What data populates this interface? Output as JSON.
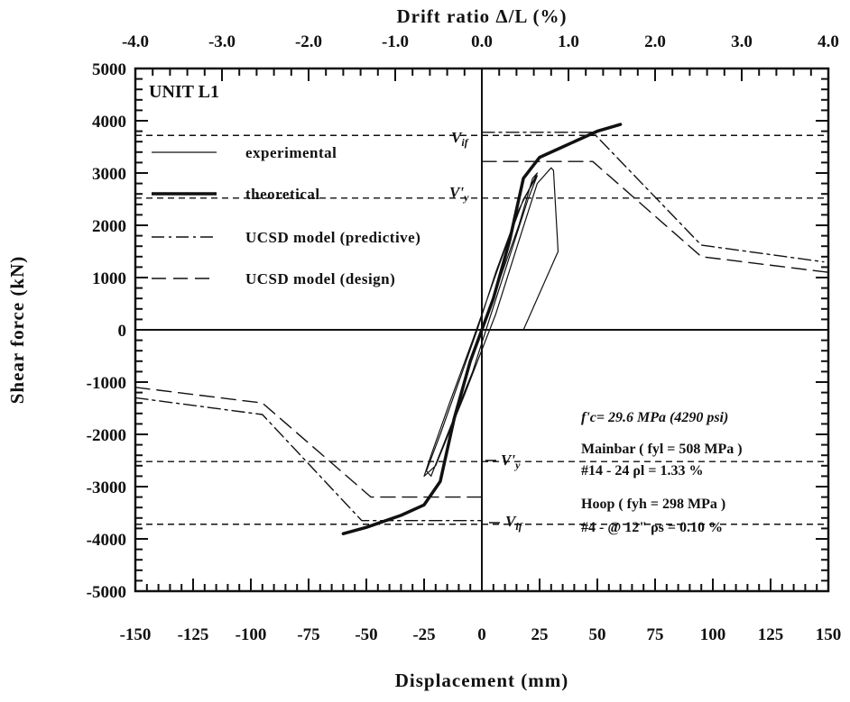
{
  "chart_data": {
    "type": "line",
    "title": "",
    "unit_label": "UNIT L1",
    "xlabel": "Displacement (mm)",
    "ylabel": "Shear force (kN)",
    "x2label": "Drift ratio Δ/L (%)",
    "xlim": [
      -150,
      150
    ],
    "ylim": [
      -5000,
      5000
    ],
    "x2lim": [
      -4.0,
      4.0
    ],
    "x_ticks": [
      "-150",
      "-125",
      "-100",
      "-75",
      "-50",
      "-25",
      "0",
      "25",
      "50",
      "75",
      "100",
      "125",
      "150"
    ],
    "x_tick_values": [
      -150,
      -125,
      -100,
      -75,
      -50,
      -25,
      0,
      25,
      50,
      75,
      100,
      125,
      150
    ],
    "y_ticks": [
      "5000",
      "4000",
      "3000",
      "2000",
      "1000",
      "0",
      "-1000",
      "-2000",
      "-3000",
      "-4000",
      "-5000"
    ],
    "y_tick_values": [
      5000,
      4000,
      3000,
      2000,
      1000,
      0,
      -1000,
      -2000,
      -3000,
      -4000,
      -5000
    ],
    "x2_ticks": [
      "-4.0",
      "-3.0",
      "-2.0",
      "-1.0",
      "0.0",
      "1.0",
      "2.0",
      "3.0",
      "4.0"
    ],
    "x2_tick_values": [
      -4.0,
      -3.0,
      -2.0,
      -1.0,
      0.0,
      1.0,
      2.0,
      3.0,
      4.0
    ],
    "grid": false,
    "legend_position": "top-left",
    "legend": [
      {
        "label": "experimental",
        "style": "thin-solid"
      },
      {
        "label": "theoretical",
        "style": "thick-solid"
      },
      {
        "label": "UCSD model (predictive)",
        "style": "dash-dot"
      },
      {
        "label": "UCSD model (design)",
        "style": "long-dash"
      }
    ],
    "series": [
      {
        "name": "theoretical",
        "style": "thick-solid",
        "points": [
          [
            -60,
            -3900
          ],
          [
            -50,
            -3780
          ],
          [
            -35,
            -3550
          ],
          [
            -25,
            -3350
          ],
          [
            -18,
            -2900
          ],
          [
            -12,
            -1700
          ],
          [
            -5,
            -600
          ],
          [
            0,
            0
          ],
          [
            5,
            600
          ],
          [
            12,
            1700
          ],
          [
            18,
            2900
          ],
          [
            25,
            3300
          ],
          [
            35,
            3500
          ],
          [
            50,
            3800
          ],
          [
            60,
            3930
          ]
        ]
      },
      {
        "name": "UCSD model (predictive)",
        "style": "dash-dot",
        "points": [
          [
            -150,
            -1300
          ],
          [
            -95,
            -1620
          ],
          [
            -52,
            -3650
          ],
          [
            -25,
            -3650
          ],
          [
            0,
            -3650
          ]
        ]
      },
      {
        "name": "UCSD model (predictive) positive",
        "style": "dash-dot",
        "points": [
          [
            0,
            3780
          ],
          [
            25,
            3780
          ],
          [
            48,
            3780
          ],
          [
            95,
            1620
          ],
          [
            148,
            1300
          ]
        ]
      },
      {
        "name": "UCSD model (design)",
        "style": "long-dash",
        "points": [
          [
            -150,
            -1100
          ],
          [
            -95,
            -1400
          ],
          [
            -48,
            -3200
          ],
          [
            0,
            -3200
          ]
        ]
      },
      {
        "name": "UCSD model (design) positive",
        "style": "long-dash",
        "points": [
          [
            0,
            3220
          ],
          [
            48,
            3220
          ],
          [
            95,
            1400
          ],
          [
            150,
            1100
          ]
        ]
      },
      {
        "name": "experimental",
        "style": "thin-solid",
        "points": [
          [
            0,
            0
          ],
          [
            8,
            1000
          ],
          [
            16,
            2000
          ],
          [
            22,
            2900
          ],
          [
            24,
            3000
          ],
          [
            16,
            2300
          ],
          [
            6,
            1100
          ],
          [
            -2,
            0
          ],
          [
            -10,
            -1000
          ],
          [
            -18,
            -2000
          ],
          [
            -24,
            -2700
          ],
          [
            -22,
            -2800
          ],
          [
            -14,
            -1900
          ],
          [
            -4,
            -800
          ],
          [
            4,
            300
          ],
          [
            12,
            1400
          ],
          [
            20,
            2500
          ],
          [
            24,
            2950
          ],
          [
            18,
            2500
          ],
          [
            8,
            1300
          ],
          [
            -4,
            -200
          ],
          [
            -14,
            -1400
          ],
          [
            -22,
            -2400
          ],
          [
            -25,
            -2800
          ],
          [
            -20,
            -2600
          ],
          [
            -8,
            -1300
          ],
          [
            6,
            300
          ],
          [
            16,
            1700
          ],
          [
            24,
            2800
          ],
          [
            30,
            3100
          ],
          [
            31,
            3050
          ],
          [
            33,
            1500
          ],
          [
            18,
            0
          ]
        ]
      }
    ],
    "reference_lines": [
      {
        "label": "V_if",
        "y": 3720
      },
      {
        "label": "V'y",
        "y": 2520
      },
      {
        "label": "V'y",
        "y": -2520
      },
      {
        "label": "V_if",
        "y": -3720
      }
    ],
    "annotations": {
      "vif_top": "V",
      "vif_top_sub": "if",
      "vy_top": "V'",
      "vy_top_sub": "y",
      "vy_bottom": "V'",
      "vy_bottom_sub": "y",
      "vif_bottom": "V",
      "vif_bottom_sub": "if",
      "fc": "f'c= 29.6 MPa (4290 psi)",
      "mainbar": "Mainbar ( fyl = 508 MPa )",
      "mainbar_detail": "#14 - 24  ρl = 1.33 %",
      "hoop": "Hoop  ( fyh = 298 MPa )",
      "hoop_detail": "#4 - @ 12\"  ρs = 0.10 %"
    }
  }
}
